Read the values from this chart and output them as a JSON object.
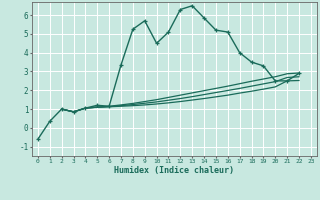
{
  "xlabel": "Humidex (Indice chaleur)",
  "ylabel": "",
  "xlim": [
    -0.5,
    23.5
  ],
  "ylim": [
    -1.5,
    6.7
  ],
  "xticks": [
    0,
    1,
    2,
    3,
    4,
    5,
    6,
    7,
    8,
    9,
    10,
    11,
    12,
    13,
    14,
    15,
    16,
    17,
    18,
    19,
    20,
    21,
    22,
    23
  ],
  "yticks": [
    -1,
    0,
    1,
    2,
    3,
    4,
    5,
    6
  ],
  "background_color": "#c8e8e0",
  "grid_color": "#ffffff",
  "line_color": "#1a6b5a",
  "lines": [
    {
      "x": [
        0,
        1,
        2,
        3,
        4,
        5,
        6,
        7,
        8,
        9,
        10,
        11,
        12,
        13,
        14,
        15,
        16,
        17,
        18,
        19,
        20,
        21,
        22
      ],
      "y": [
        -0.6,
        0.35,
        1.0,
        0.85,
        1.05,
        1.2,
        1.15,
        3.35,
        5.25,
        5.7,
        4.5,
        5.1,
        6.3,
        6.5,
        5.85,
        5.2,
        5.1,
        4.0,
        3.5,
        3.3,
        2.5,
        2.5,
        2.9
      ],
      "marker": true,
      "linewidth": 1.0
    },
    {
      "x": [
        2,
        3,
        4,
        5,
        6,
        7,
        8,
        9,
        10,
        11,
        12,
        13,
        14,
        15,
        16,
        17,
        18,
        19,
        20,
        21,
        22
      ],
      "y": [
        1.0,
        0.85,
        1.05,
        1.1,
        1.12,
        1.15,
        1.18,
        1.22,
        1.27,
        1.33,
        1.4,
        1.48,
        1.56,
        1.65,
        1.74,
        1.85,
        1.95,
        2.06,
        2.18,
        2.5,
        2.52
      ],
      "marker": false,
      "linewidth": 0.9
    },
    {
      "x": [
        2,
        3,
        4,
        5,
        6,
        7,
        8,
        9,
        10,
        11,
        12,
        13,
        14,
        15,
        16,
        17,
        18,
        19,
        20,
        21,
        22
      ],
      "y": [
        1.0,
        0.85,
        1.05,
        1.1,
        1.15,
        1.22,
        1.3,
        1.4,
        1.5,
        1.62,
        1.74,
        1.86,
        1.98,
        2.1,
        2.22,
        2.35,
        2.48,
        2.6,
        2.72,
        2.88,
        2.92
      ],
      "marker": false,
      "linewidth": 0.9
    },
    {
      "x": [
        2,
        3,
        4,
        5,
        6,
        7,
        8,
        9,
        10,
        11,
        12,
        13,
        14,
        15,
        16,
        17,
        18,
        19,
        20,
        21,
        22
      ],
      "y": [
        1.0,
        0.85,
        1.05,
        1.1,
        1.13,
        1.18,
        1.24,
        1.31,
        1.38,
        1.47,
        1.56,
        1.66,
        1.77,
        1.88,
        1.99,
        2.1,
        2.22,
        2.34,
        2.46,
        2.68,
        2.72
      ],
      "marker": false,
      "linewidth": 0.9
    }
  ]
}
